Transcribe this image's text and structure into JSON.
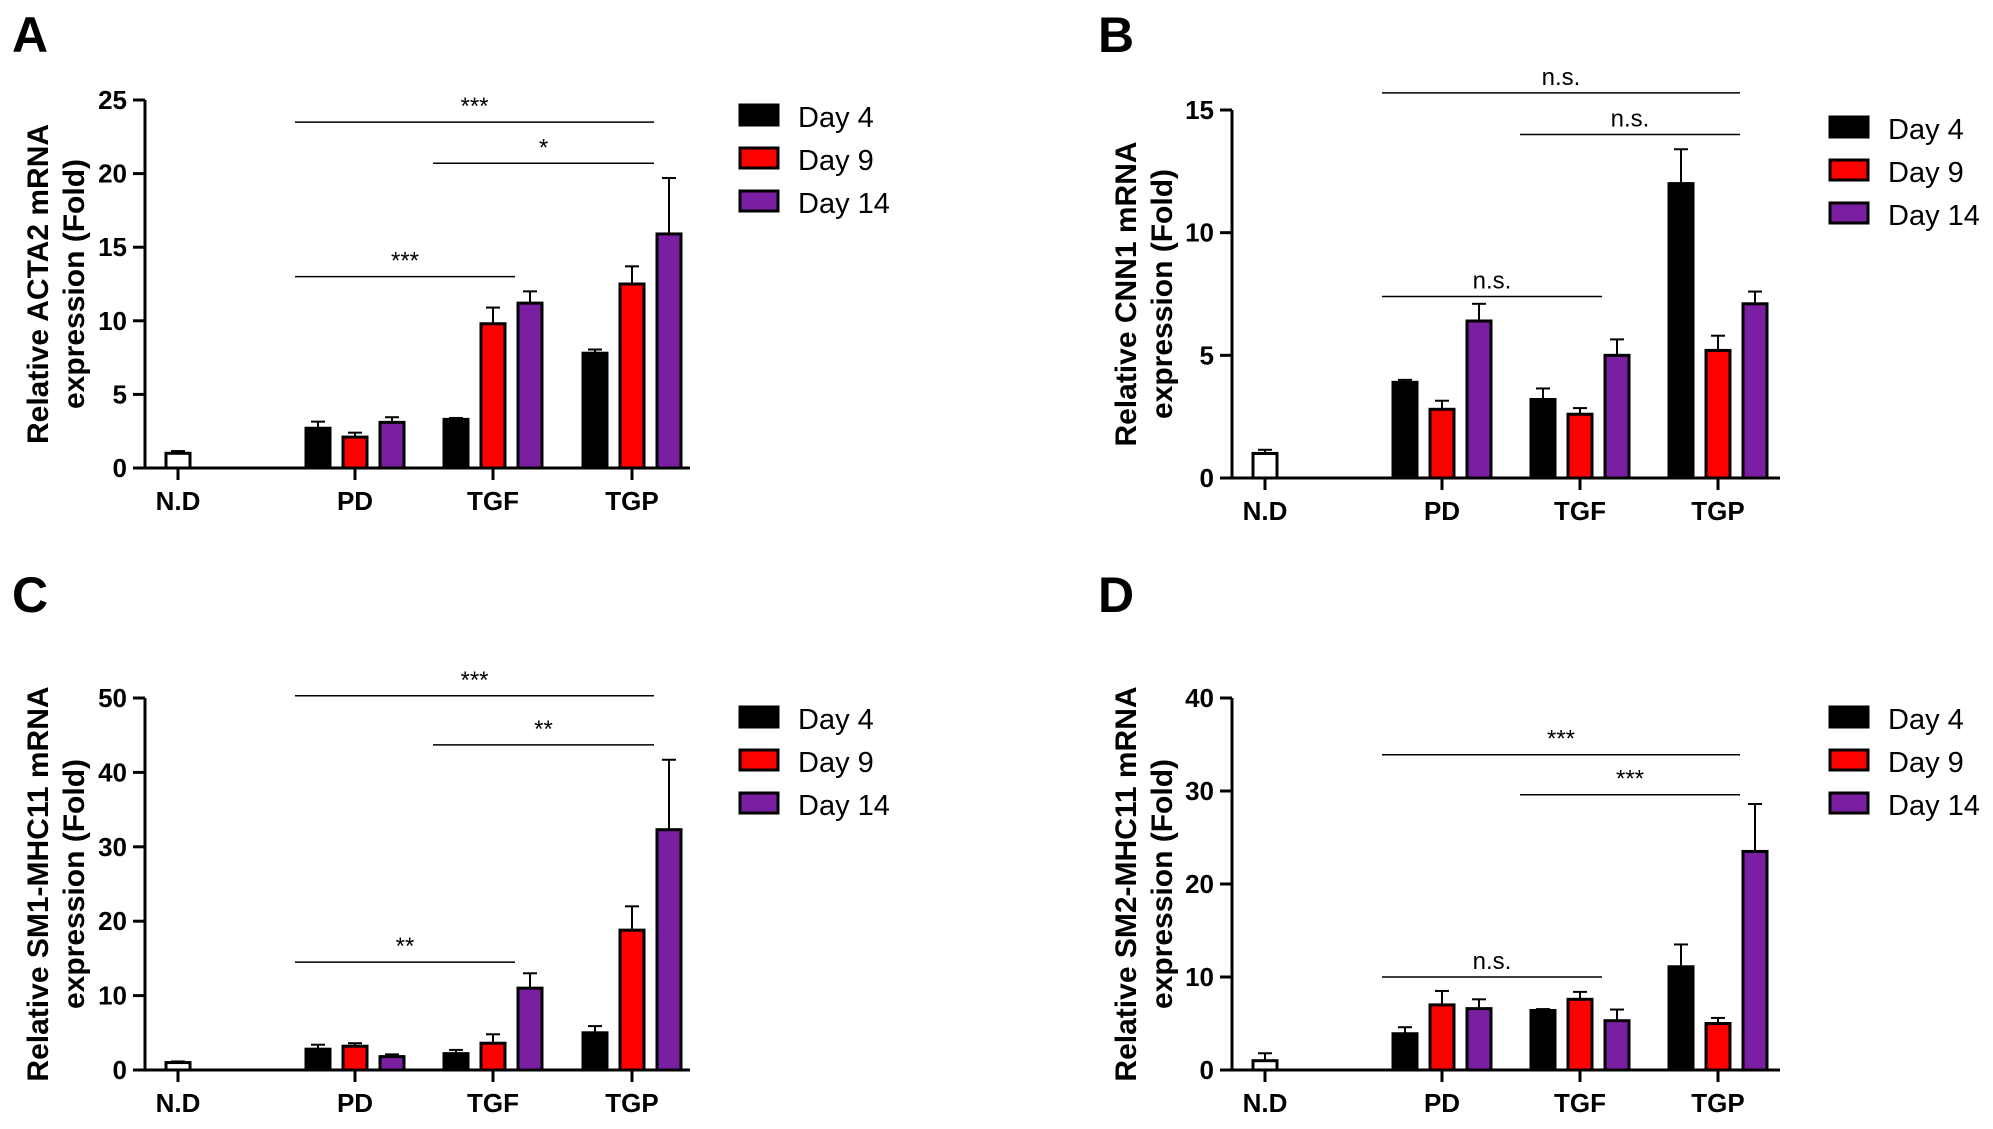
{
  "chart_data": [
    {
      "type": "bar",
      "panel": "A",
      "ylabel_line1": "Relative ACTA2 mRNA",
      "ylabel_line2": "expression (Fold)",
      "ylim": [
        0,
        25
      ],
      "yticks": [
        0,
        5,
        10,
        15,
        20,
        25
      ],
      "categories": [
        "N.D",
        "PD",
        "TGF",
        "TGP"
      ],
      "control": {
        "name": "N.D",
        "value": 1.0,
        "error": 0.15
      },
      "series": [
        {
          "name": "Day 4",
          "color": "#000000",
          "values": [
            null,
            2.7,
            3.3,
            7.8
          ],
          "errors": [
            null,
            0.45,
            0.1,
            0.25
          ]
        },
        {
          "name": "Day 9",
          "color": "#ff0000",
          "values": [
            null,
            2.1,
            9.8,
            12.5
          ],
          "errors": [
            null,
            0.3,
            1.1,
            1.2
          ]
        },
        {
          "name": "Day 14",
          "color": "#7b1fa2",
          "values": [
            null,
            3.1,
            11.2,
            15.9
          ],
          "errors": [
            null,
            0.35,
            0.8,
            3.8
          ]
        }
      ],
      "significance": [
        {
          "label": "***",
          "from": "PD",
          "to": "TGP",
          "y": 23.5
        },
        {
          "label": "*",
          "from": "TGF",
          "to": "TGP",
          "y": 20.7
        },
        {
          "label": "***",
          "from": "PD",
          "to": "TGF",
          "y": 13.0
        }
      ]
    },
    {
      "type": "bar",
      "panel": "B",
      "ylabel_line1": "Relative CNN1 mRNA",
      "ylabel_line2": "expression (Fold)",
      "ylim": [
        0,
        15
      ],
      "yticks": [
        0,
        5,
        10,
        15
      ],
      "categories": [
        "N.D",
        "PD",
        "TGF",
        "TGP"
      ],
      "control": {
        "name": "N.D",
        "value": 1.0,
        "error": 0.15
      },
      "series": [
        {
          "name": "Day 4",
          "color": "#000000",
          "values": [
            null,
            3.9,
            3.2,
            12.0
          ],
          "errors": [
            null,
            0.1,
            0.45,
            1.4
          ]
        },
        {
          "name": "Day 9",
          "color": "#ff0000",
          "values": [
            null,
            2.8,
            2.6,
            5.2
          ],
          "errors": [
            null,
            0.35,
            0.25,
            0.6
          ]
        },
        {
          "name": "Day 14",
          "color": "#7b1fa2",
          "values": [
            null,
            6.4,
            5.0,
            7.1
          ],
          "errors": [
            null,
            0.7,
            0.65,
            0.5
          ]
        }
      ],
      "significance": [
        {
          "label": "n.s.",
          "from": "PD",
          "to": "TGP",
          "y": 15.7
        },
        {
          "label": "n.s.",
          "from": "TGF",
          "to": "TGP",
          "y": 14.0
        },
        {
          "label": "n.s.",
          "from": "PD",
          "to": "TGF",
          "y": 7.4
        }
      ]
    },
    {
      "type": "bar",
      "panel": "C",
      "ylabel_line1": "Relative SM1-MHC11 mRNA",
      "ylabel_line2": "expression (Fold)",
      "ylim": [
        0,
        50
      ],
      "yticks": [
        0,
        10,
        20,
        30,
        40,
        50
      ],
      "categories": [
        "N.D",
        "PD",
        "TGF",
        "TGP"
      ],
      "control": {
        "name": "N.D",
        "value": 1.0,
        "error": 0.15
      },
      "series": [
        {
          "name": "Day 4",
          "color": "#000000",
          "values": [
            null,
            2.8,
            2.2,
            5.0
          ],
          "errors": [
            null,
            0.6,
            0.5,
            0.9
          ]
        },
        {
          "name": "Day 9",
          "color": "#ff0000",
          "values": [
            null,
            3.2,
            3.6,
            18.8
          ],
          "errors": [
            null,
            0.4,
            1.2,
            3.2
          ]
        },
        {
          "name": "Day 14",
          "color": "#7b1fa2",
          "values": [
            null,
            1.8,
            11.0,
            32.3
          ],
          "errors": [
            null,
            0.3,
            2.0,
            9.4
          ]
        }
      ],
      "significance": [
        {
          "label": "***",
          "from": "PD",
          "to": "TGP",
          "y": 50.3
        },
        {
          "label": "**",
          "from": "TGF",
          "to": "TGP",
          "y": 43.7
        },
        {
          "label": "**",
          "from": "PD",
          "to": "TGF",
          "y": 14.5
        }
      ]
    },
    {
      "type": "bar",
      "panel": "D",
      "ylabel_line1": "Relative SM2-MHC11 mRNA",
      "ylabel_line2": "expression (Fold)",
      "ylim": [
        0,
        40
      ],
      "yticks": [
        0,
        10,
        20,
        30,
        40
      ],
      "categories": [
        "N.D",
        "PD",
        "TGF",
        "TGP"
      ],
      "control": {
        "name": "N.D",
        "value": 1.0,
        "error": 0.8
      },
      "series": [
        {
          "name": "Day 4",
          "color": "#000000",
          "values": [
            null,
            3.9,
            6.4,
            11.1
          ],
          "errors": [
            null,
            0.7,
            0.15,
            2.4
          ]
        },
        {
          "name": "Day 9",
          "color": "#ff0000",
          "values": [
            null,
            7.0,
            7.6,
            5.0
          ],
          "errors": [
            null,
            1.5,
            0.8,
            0.6
          ]
        },
        {
          "name": "Day 14",
          "color": "#7b1fa2",
          "values": [
            null,
            6.6,
            5.3,
            23.5
          ],
          "errors": [
            null,
            1.0,
            1.2,
            5.1
          ]
        }
      ],
      "significance": [
        {
          "label": "***",
          "from": "PD",
          "to": "TGP",
          "y": 33.9
        },
        {
          "label": "***",
          "from": "TGF",
          "to": "TGP",
          "y": 29.6
        },
        {
          "label": "n.s.",
          "from": "PD",
          "to": "TGF",
          "y": 10.0
        }
      ]
    }
  ]
}
